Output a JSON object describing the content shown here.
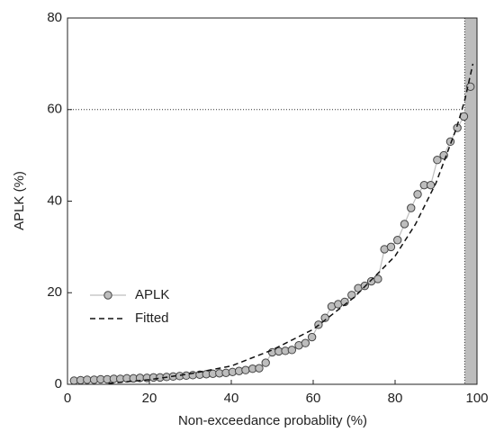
{
  "chart_data": {
    "type": "line",
    "xlabel": "Non-exceedance probablity (%)",
    "ylabel": "APLK (%)",
    "xlim": [
      0,
      100
    ],
    "ylim": [
      0,
      80
    ],
    "xticks": [
      0,
      20,
      40,
      60,
      80,
      100
    ],
    "yticks": [
      0,
      20,
      40,
      60,
      80
    ],
    "hline": 60,
    "shade": [
      97,
      100
    ],
    "shade_color": "#bdbdbd",
    "series": [
      {
        "name": "APLK",
        "color": "#bdbdbd",
        "marker": "circle",
        "x": [
          1.6,
          3.2,
          4.8,
          6.5,
          8.1,
          9.7,
          11.3,
          12.9,
          14.5,
          16.1,
          17.7,
          19.4,
          21.0,
          22.6,
          24.2,
          25.8,
          27.4,
          29.0,
          30.6,
          32.3,
          33.9,
          35.5,
          37.1,
          38.7,
          40.3,
          41.9,
          43.5,
          45.2,
          46.8,
          48.4,
          50.0,
          51.6,
          53.2,
          54.8,
          56.5,
          58.1,
          59.7,
          61.3,
          62.9,
          64.5,
          66.1,
          67.7,
          69.4,
          71.0,
          72.6,
          74.2,
          75.8,
          77.4,
          79.0,
          80.6,
          82.3,
          83.9,
          85.5,
          87.1,
          88.7,
          90.3,
          91.9,
          93.5,
          95.2,
          96.8,
          98.4
        ],
        "values": [
          0.8,
          0.9,
          1.0,
          1.0,
          1.1,
          1.1,
          1.2,
          1.2,
          1.3,
          1.3,
          1.4,
          1.4,
          1.5,
          1.5,
          1.6,
          1.7,
          1.8,
          1.9,
          2.0,
          2.1,
          2.2,
          2.3,
          2.4,
          2.5,
          2.7,
          2.9,
          3.1,
          3.4,
          3.5,
          4.7,
          7.0,
          7.2,
          7.3,
          7.5,
          8.5,
          9.0,
          10.3,
          13,
          14.5,
          17,
          17.5,
          18,
          19.5,
          21,
          21.5,
          22.5,
          23,
          29.5,
          30,
          31.5,
          35,
          38.5,
          41.5,
          43.5,
          43.5,
          49,
          50,
          53,
          56,
          58.5,
          65
        ]
      },
      {
        "name": "Fitted",
        "color": "#111111",
        "dash": true,
        "x": [
          10,
          20,
          30,
          40,
          50,
          60,
          70,
          80,
          85,
          90,
          95,
          97,
          99
        ],
        "values": [
          0.2,
          1.0,
          2.3,
          4.0,
          7.5,
          12,
          19,
          28,
          35,
          44,
          56,
          62,
          70
        ]
      }
    ]
  }
}
